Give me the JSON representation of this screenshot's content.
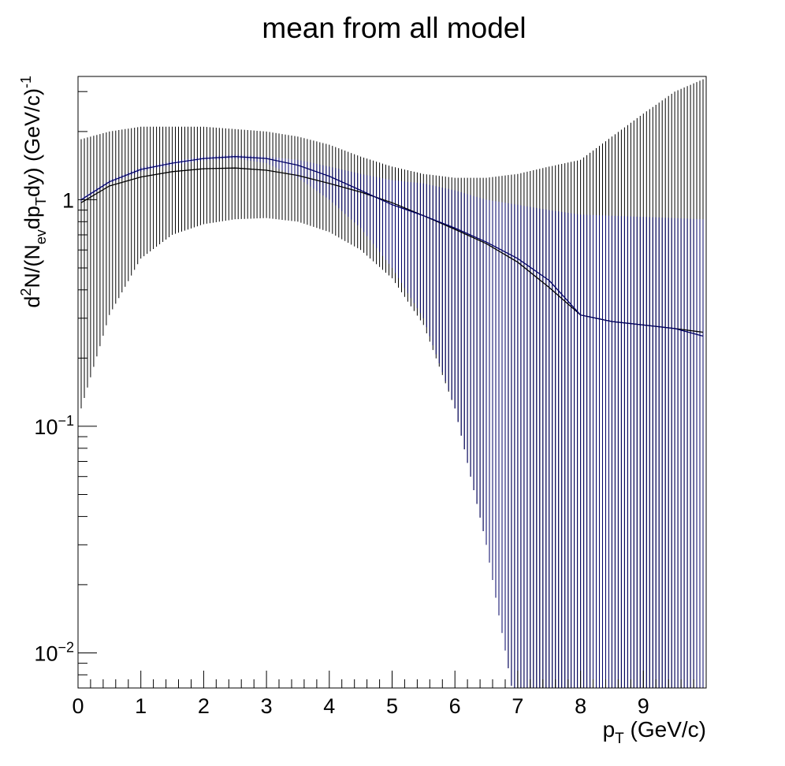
{
  "chart_data": {
    "type": "line",
    "title": "mean from all model",
    "xaxis": {
      "label_main": "p",
      "label_sub": "T",
      "label_rest": " (GeV/c)",
      "range": [
        0,
        10
      ],
      "scale": "linear",
      "ticks": [
        "0",
        "1",
        "2",
        "3",
        "4",
        "5",
        "6",
        "7",
        "8",
        "9"
      ]
    },
    "yaxis": {
      "label_parts": [
        {
          "t": "d",
          "pos": "n"
        },
        {
          "t": "2",
          "pos": "sup"
        },
        {
          "t": "N/(N",
          "pos": "n"
        },
        {
          "t": "ev",
          "pos": "sub"
        },
        {
          "t": "dp",
          "pos": "n"
        },
        {
          "t": "T",
          "pos": "sub"
        },
        {
          "t": "dy) (GeV/c)",
          "pos": "n"
        },
        {
          "t": "-1",
          "pos": "sup"
        }
      ],
      "range": [
        0.007,
        3.5
      ],
      "scale": "log",
      "ticks": [
        {
          "value": 1,
          "base": "1",
          "exp": ""
        },
        {
          "value": 0.1,
          "base": "10",
          "exp": "−1"
        },
        {
          "value": 0.01,
          "base": "10",
          "exp": "−2"
        }
      ]
    },
    "grid": false,
    "legend": "none",
    "series": [
      {
        "color": "#000000",
        "style": "vertical error bars",
        "x": [
          0.05,
          0.5,
          1.0,
          1.5,
          2.0,
          2.5,
          3.0,
          3.5,
          4.0,
          4.5,
          5.0,
          5.5,
          6.0,
          6.5,
          7.0,
          7.5,
          8.0,
          8.5,
          9.0,
          9.5,
          9.95
        ],
        "y": [
          0.97,
          1.15,
          1.26,
          1.33,
          1.37,
          1.38,
          1.35,
          1.28,
          1.18,
          1.08,
          0.97,
          0.85,
          0.74,
          0.64,
          0.53,
          0.41,
          0.31,
          0.29,
          0.28,
          0.27,
          0.26
        ],
        "y_high": [
          1.85,
          2.0,
          2.1,
          2.1,
          2.1,
          2.05,
          2.0,
          1.9,
          1.75,
          1.55,
          1.4,
          1.3,
          1.25,
          1.25,
          1.3,
          1.4,
          1.5,
          1.9,
          2.4,
          3.0,
          3.4
        ],
        "y_low": [
          0.12,
          0.31,
          0.55,
          0.7,
          0.78,
          0.82,
          0.83,
          0.8,
          0.72,
          0.6,
          0.45,
          0.28,
          0.12,
          0.03,
          0.005,
          0.005,
          0.005,
          0.005,
          0.005,
          0.005,
          0.005
        ]
      },
      {
        "color": "#000066",
        "style": "vertical error bars",
        "x": [
          0.05,
          0.5,
          1.0,
          1.5,
          2.0,
          2.5,
          3.0,
          3.5,
          4.0,
          4.5,
          5.0,
          5.5,
          6.0,
          6.5,
          7.0,
          7.5,
          8.0,
          8.5,
          9.0,
          9.5,
          9.95
        ],
        "y": [
          1.0,
          1.2,
          1.36,
          1.45,
          1.52,
          1.55,
          1.52,
          1.42,
          1.27,
          1.1,
          0.95,
          0.85,
          0.75,
          0.65,
          0.55,
          0.44,
          0.31,
          0.29,
          0.28,
          0.27,
          0.25
        ],
        "y_high": [
          1.02,
          1.22,
          1.39,
          1.48,
          1.55,
          1.58,
          1.55,
          1.5,
          1.4,
          1.3,
          1.22,
          1.18,
          1.1,
          1.0,
          0.95,
          0.9,
          0.86,
          0.85,
          0.84,
          0.83,
          0.82
        ],
        "y_low": [
          0.98,
          1.18,
          1.33,
          1.42,
          1.49,
          1.52,
          1.45,
          1.25,
          1.0,
          0.75,
          0.5,
          0.3,
          0.12,
          0.03,
          0.005,
          0.005,
          0.005,
          0.005,
          0.005,
          0.005,
          0.005
        ]
      }
    ]
  }
}
